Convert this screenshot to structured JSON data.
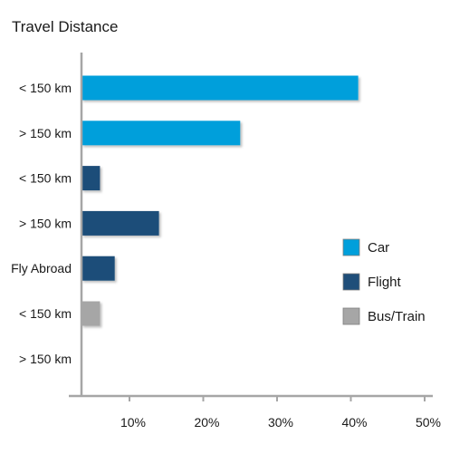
{
  "chart_data": {
    "type": "bar",
    "orientation": "horizontal",
    "title": "Travel Distance",
    "xlabel": "",
    "ylabel": "",
    "xlim": [
      0,
      50
    ],
    "x_ticks": [
      10,
      20,
      30,
      40,
      50
    ],
    "x_tick_labels": [
      "10%",
      "20%",
      "30%",
      "40%",
      "50%"
    ],
    "grid": false,
    "legend_position": "right",
    "categories": [
      "< 150 km",
      "> 150 km",
      "< 150 km",
      "> 150 km",
      "Fly Abroad",
      "< 150 km",
      "> 150 km"
    ],
    "values": [
      41,
      25,
      6,
      14,
      8,
      6,
      3
    ],
    "bar_series": [
      "Car",
      "Car",
      "Flight",
      "Flight",
      "Flight",
      "Bus/Train",
      "Bus/Train"
    ],
    "series": [
      {
        "name": "Car",
        "color": "#009fdb"
      },
      {
        "name": "Flight",
        "color": "#1f4e79"
      },
      {
        "name": "Bus/Train",
        "color": "#a6a6a6"
      }
    ]
  }
}
